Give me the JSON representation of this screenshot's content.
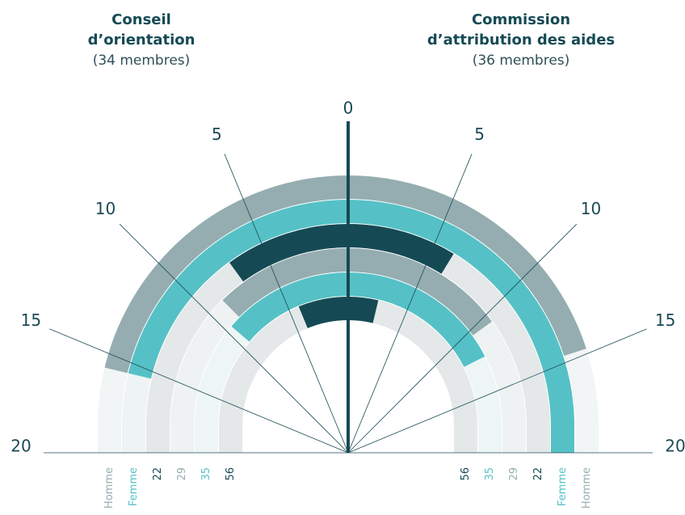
{
  "chart_data": {
    "type": "radial_bar",
    "lim": [
      0,
      20
    ],
    "ticks": [
      0,
      5,
      10,
      15,
      20
    ],
    "panels": [
      {
        "title": [
          "Conseil",
          "d’orientation"
        ],
        "subtitle": "(34 membres)",
        "series": [
          {
            "name": "Homme",
            "color": "#95adb0",
            "value": 17
          },
          {
            "name": "Femme",
            "color": "#55c1c6",
            "value": 17
          },
          {
            "name": "22",
            "color": "#154a55",
            "value": 8
          },
          {
            "name": "29",
            "color": "#95adb0",
            "value": 10
          },
          {
            "name": "35",
            "color": "#55c1c6",
            "value": 11
          },
          {
            "name": "56",
            "color": "#154a55",
            "value": 5
          }
        ]
      },
      {
        "title": [
          "Commission",
          "d’attribution des aides"
        ],
        "subtitle": "(36 membres)",
        "series": [
          {
            "name": "Homme",
            "color": "#95adb0",
            "value": 16
          },
          {
            "name": "Femme",
            "color": "#55c1c6",
            "value": 20
          },
          {
            "name": "22",
            "color": "#154a55",
            "value": 7
          },
          {
            "name": "29",
            "color": "#95adb0",
            "value": 12
          },
          {
            "name": "35",
            "color": "#55c1c6",
            "value": 14
          },
          {
            "name": "56",
            "color": "#154a55",
            "value": 3
          }
        ]
      }
    ]
  }
}
